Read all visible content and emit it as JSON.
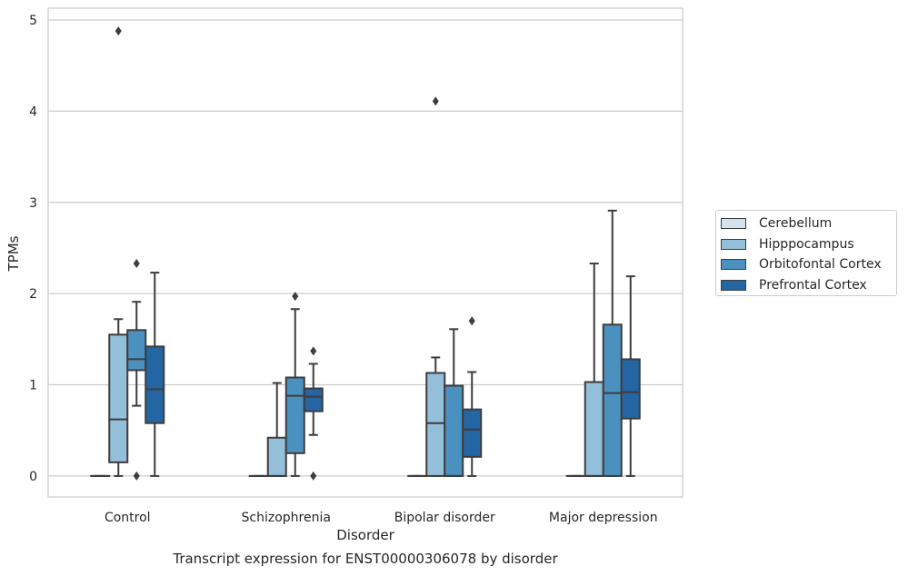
{
  "chart_data": {
    "type": "box",
    "xlabel": "Disorder",
    "ylabel": "TPMs",
    "ylim": [
      -0.23,
      5.13
    ],
    "yticks": [
      "0",
      "1",
      "2",
      "3",
      "4",
      "5"
    ],
    "grid": true,
    "legend_position": "right",
    "categories": [
      "Control",
      "Schizophrenia",
      "Bipolar disorder",
      "Major depression"
    ],
    "series": [
      {
        "name": "Cerebellum",
        "color": "#d1e2f0",
        "boxes": [
          {
            "whislo": 0,
            "q1": 0,
            "med": 0,
            "q3": 0,
            "whishi": 0,
            "fliers": []
          },
          {
            "whislo": 0,
            "q1": 0,
            "med": 0,
            "q3": 0,
            "whishi": 0,
            "fliers": []
          },
          {
            "whislo": 0,
            "q1": 0,
            "med": 0,
            "q3": 0,
            "whishi": 0,
            "fliers": []
          },
          {
            "whislo": 0,
            "q1": 0,
            "med": 0,
            "q3": 0,
            "whishi": 0,
            "fliers": []
          }
        ]
      },
      {
        "name": "Hipppocampus",
        "color": "#94bfda",
        "boxes": [
          {
            "whislo": 0,
            "q1": 0.15,
            "med": 0.62,
            "q3": 1.55,
            "whishi": 1.72,
            "fliers": [
              4.88
            ]
          },
          {
            "whislo": 0,
            "q1": 0,
            "med": 0,
            "q3": 0.42,
            "whishi": 1.02,
            "fliers": []
          },
          {
            "whislo": 0,
            "q1": 0,
            "med": 0.58,
            "q3": 1.13,
            "whishi": 1.3,
            "fliers": [
              4.11
            ]
          },
          {
            "whislo": 0,
            "q1": 0,
            "med": 0,
            "q3": 1.03,
            "whishi": 2.33,
            "fliers": []
          }
        ]
      },
      {
        "name": "Orbitofontal Cortex",
        "color": "#4b91bf",
        "boxes": [
          {
            "whislo": 0.77,
            "q1": 1.16,
            "med": 1.28,
            "q3": 1.6,
            "whishi": 1.91,
            "fliers": [
              2.33,
              0
            ]
          },
          {
            "whislo": 0,
            "q1": 0.25,
            "med": 0.88,
            "q3": 1.08,
            "whishi": 1.83,
            "fliers": [
              1.97
            ]
          },
          {
            "whislo": 0,
            "q1": 0,
            "med": 0,
            "q3": 0.99,
            "whishi": 1.61,
            "fliers": []
          },
          {
            "whislo": 0,
            "q1": 0,
            "med": 0.91,
            "q3": 1.66,
            "whishi": 2.91,
            "fliers": []
          }
        ]
      },
      {
        "name": "Prefrontal Cortex",
        "color": "#2466a4",
        "boxes": [
          {
            "whislo": 0,
            "q1": 0.58,
            "med": 0.95,
            "q3": 1.42,
            "whishi": 2.23,
            "fliers": []
          },
          {
            "whislo": 0.45,
            "q1": 0.71,
            "med": 0.87,
            "q3": 0.96,
            "whishi": 1.23,
            "fliers": [
              1.37,
              0
            ]
          },
          {
            "whislo": 0,
            "q1": 0.21,
            "med": 0.51,
            "q3": 0.73,
            "whishi": 1.14,
            "fliers": [
              1.7
            ]
          },
          {
            "whislo": 0,
            "q1": 0.63,
            "med": 0.92,
            "q3": 1.28,
            "whishi": 2.19,
            "fliers": []
          }
        ]
      }
    ]
  },
  "caption": "Transcript expression for ENST00000306078 by disorder"
}
